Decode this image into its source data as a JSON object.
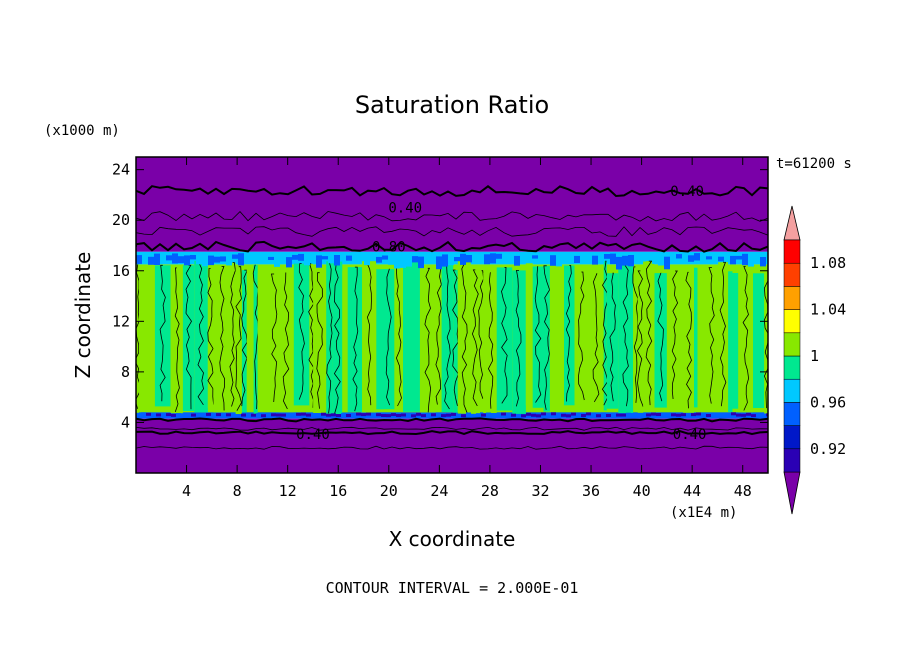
{
  "chart_data": {
    "type": "heatmap",
    "title": "Saturation Ratio",
    "xlabel": "X coordinate",
    "ylabel": "Z coordinate",
    "x_unit": "(x1E4 m)",
    "y_unit": "(x1000 m)",
    "time_label": "t=61200 s",
    "footer": "CONTOUR INTERVAL = 2.000E-01",
    "xlim": [
      0,
      50
    ],
    "ylim": [
      0,
      25
    ],
    "x_ticks": [
      4,
      8,
      12,
      16,
      20,
      24,
      28,
      32,
      36,
      40,
      44,
      48
    ],
    "y_ticks": [
      4,
      8,
      12,
      16,
      20,
      24
    ],
    "colorbar": {
      "labels": [
        "0.92",
        "0.96",
        "1",
        "1.04",
        "1.08"
      ],
      "label_values": [
        0.92,
        0.96,
        1.0,
        1.04,
        1.08
      ],
      "levels": [
        0.9,
        0.92,
        0.94,
        0.96,
        0.98,
        1.0,
        1.02,
        1.04,
        1.06,
        1.08,
        1.1
      ],
      "colors": [
        "#7a00a8",
        "#2a00b4",
        "#0018c8",
        "#0060ff",
        "#00c8ff",
        "#00e890",
        "#88e800",
        "#ffff00",
        "#ffa000",
        "#ff4000",
        "#ff0000",
        "#f4a0a0"
      ]
    },
    "regions": [
      {
        "name": "upper-dry-layer",
        "z_range": [
          17.5,
          25
        ],
        "color": "#7a00a8"
      },
      {
        "name": "cloud-top-transition",
        "z_range": [
          16.5,
          17.5
        ],
        "color": "#00c8ff"
      },
      {
        "name": "cloud-layer",
        "z_range": [
          4.5,
          16.5
        ],
        "color": "#88e800"
      },
      {
        "name": "cloud-base-transition",
        "z_range": [
          4.3,
          4.8
        ],
        "color": "#0060ff"
      },
      {
        "name": "lower-dry-layer",
        "z_range": [
          0,
          4.3
        ],
        "color": "#7a00a8"
      }
    ],
    "contour_labels": [
      {
        "text": "0.40",
        "x": 21.3,
        "z": 21.0
      },
      {
        "text": "0.40",
        "x": 43.6,
        "z": 22.3
      },
      {
        "text": "0.80",
        "x": 20.0,
        "z": 17.9
      },
      {
        "text": "0.40",
        "x": 14.0,
        "z": 3.1
      },
      {
        "text": "0.40",
        "x": 43.8,
        "z": 3.1
      }
    ],
    "contour_lines": [
      {
        "z": 22.3,
        "weight": "heavy"
      },
      {
        "z": 20.3,
        "weight": "light"
      },
      {
        "z": 19.1,
        "weight": "light"
      },
      {
        "z": 17.9,
        "weight": "heavy"
      },
      {
        "z": 4.2,
        "weight": "heavy"
      },
      {
        "z": 3.5,
        "weight": "light"
      },
      {
        "z": 3.2,
        "weight": "heavy"
      },
      {
        "z": 2.0,
        "weight": "light"
      }
    ]
  }
}
